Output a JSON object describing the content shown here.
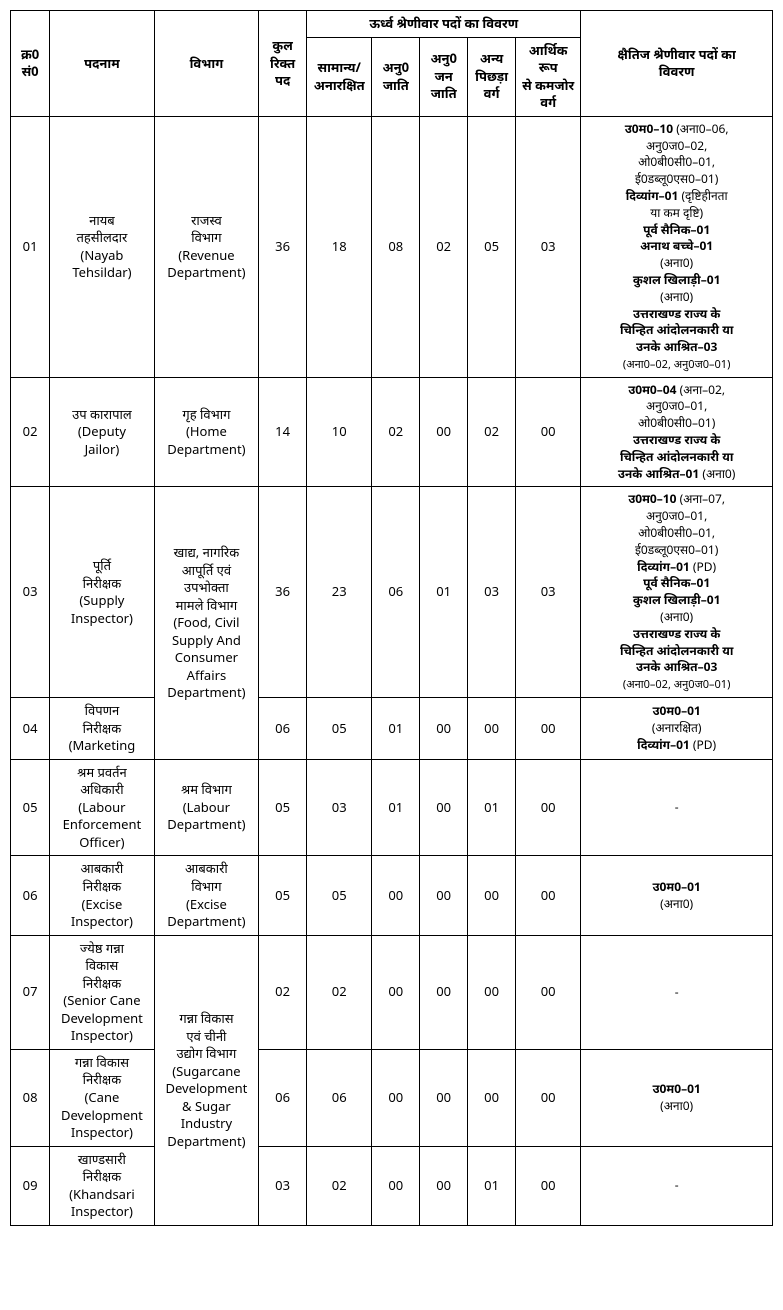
{
  "headers": {
    "sno": "क्र0\nसं0",
    "post": "पदनाम",
    "dept": "विभाग",
    "total": "कुल\nरिक्त\nपद",
    "vertical_group": "ऊर्ध्व श्रेणीवार पदों का विवरण",
    "general": "सामान्य/\nअनारक्षित",
    "sc": "अनु0\nजाति",
    "st": "अनु0\nजन\nजाति",
    "obc": "अन्य\nपिछड़ा\nवर्ग",
    "ews": "आर्थिक रूप\nसे कमजोर\nवर्ग",
    "horizontal": "क्षैतिज श्रेणीवार पदों का\nविवरण"
  },
  "rows": [
    {
      "sno": "01",
      "post": "नायब\nतहसीलदार\n(Nayab\nTehsildar)",
      "dept": "राजस्व\nविभाग\n(Revenue\nDepartment)",
      "total": "36",
      "gen": "18",
      "sc": "08",
      "st": "02",
      "obc": "05",
      "ews": "03",
      "horiz": "<b>उ0म0–10</b> (अना0–06,\nअनु0ज0–02,\nओ0बी0सी0–01,\nई0डब्लू0एस0–01)\n<b>दिव्यांग–01</b> (दृष्टिहीनता\nया कम दृष्टि)\n<b>पूर्व सैनिक–01</b>\n<b>अनाथ बच्चे–01</b>\n(अना0)\n<b>कुशल खिलाड़ी–01</b>\n(अना0)\n<b>उत्तराखण्ड राज्य के\nचिन्हित आंदोलनकारी या\nउनके आश्रित–03</b>\n<span class='sm'>(अना0–02, अनु0ज0–01)</span>"
    },
    {
      "sno": "02",
      "post": "उप कारापाल\n(Deputy\nJailor)",
      "dept": "गृह विभाग\n(Home\nDepartment)",
      "total": "14",
      "gen": "10",
      "sc": "02",
      "st": "00",
      "obc": "02",
      "ews": "00",
      "horiz": "<b>उ0म0–04</b> (अना–02,\nअनु0ज0–01,\nओ0बी0सी0–01)\n<b>उत्तराखण्ड राज्य के\nचिन्हित आंदोलनकारी या\nउनके आश्रित–01</b> (अना0)"
    },
    {
      "sno": "03",
      "post": "पूर्ति\nनिरीक्षक\n(Supply\nInspector)",
      "dept": "खाद्य, नागरिक\nआपूर्ति एवं\nउपभोक्ता\nमामले विभाग\n(Food, Civil\nSupply And\nConsumer\nAffairs\nDepartment)",
      "dept_rowspan": 2,
      "total": "36",
      "gen": "23",
      "sc": "06",
      "st": "01",
      "obc": "03",
      "ews": "03",
      "horiz": "<b>उ0म0–10</b> (अना–07,\nअनु0ज0–01,\nओ0बी0सी0–01,\nई0डब्लू0एस0–01)\n<b>दिव्यांग–01</b> (PD)\n<b>पूर्व सैनिक–01</b>\n<b>कुशल खिलाड़ी–01</b>\n(अना0)\n<b>उत्तराखण्ड राज्य के\nचिन्हित आंदोलनकारी या\nउनके आश्रित–03</b>\n<span class='sm'>(अना0–02, अनु0ज0–01)</span>"
    },
    {
      "sno": "04",
      "post": "विपणन\nनिरीक्षक\n(Marketing",
      "total": "06",
      "gen": "05",
      "sc": "01",
      "st": "00",
      "obc": "00",
      "ews": "00",
      "horiz": "<b>उ0म0–01</b>\n(अनारक्षित)\n<b>दिव्यांग–01</b> (PD)"
    },
    {
      "sno": "05",
      "post": "श्रम प्रवर्तन\nअधिकारी\n(Labour\nEnforcement\nOfficer)",
      "dept": "श्रम विभाग\n(Labour\nDepartment)",
      "total": "05",
      "gen": "03",
      "sc": "01",
      "st": "00",
      "obc": "01",
      "ews": "00",
      "horiz": "-"
    },
    {
      "sno": "06",
      "post": "आबकारी\nनिरीक्षक\n(Excise\nInspector)",
      "dept": "आबकारी\nविभाग\n(Excise\nDepartment)",
      "total": "05",
      "gen": "05",
      "sc": "00",
      "st": "00",
      "obc": "00",
      "ews": "00",
      "horiz": "<b>उ0म0–01</b>\n(अना0)"
    },
    {
      "sno": "07",
      "post": "ज्येष्ठ गन्ना\nविकास\nनिरीक्षक\n(Senior Cane\nDevelopment\nInspector)",
      "dept": "गन्ना विकास\nएवं चीनी\nउद्योग विभाग\n(Sugarcane\nDevelopment\n& Sugar\nIndustry\nDepartment)",
      "dept_rowspan": 3,
      "total": "02",
      "gen": "02",
      "sc": "00",
      "st": "00",
      "obc": "00",
      "ews": "00",
      "horiz": "-"
    },
    {
      "sno": "08",
      "post": "गन्ना विकास\nनिरीक्षक\n(Cane\nDevelopment\nInspector)",
      "total": "06",
      "gen": "06",
      "sc": "00",
      "st": "00",
      "obc": "00",
      "ews": "00",
      "horiz": "<b>उ0म0–01</b>\n(अना0)"
    },
    {
      "sno": "09",
      "post": "खाण्डसारी\nनिरीक्षक\n(Khandsari\nInspector)",
      "total": "03",
      "gen": "02",
      "sc": "00",
      "st": "00",
      "obc": "01",
      "ews": "00",
      "horiz": "-"
    }
  ]
}
